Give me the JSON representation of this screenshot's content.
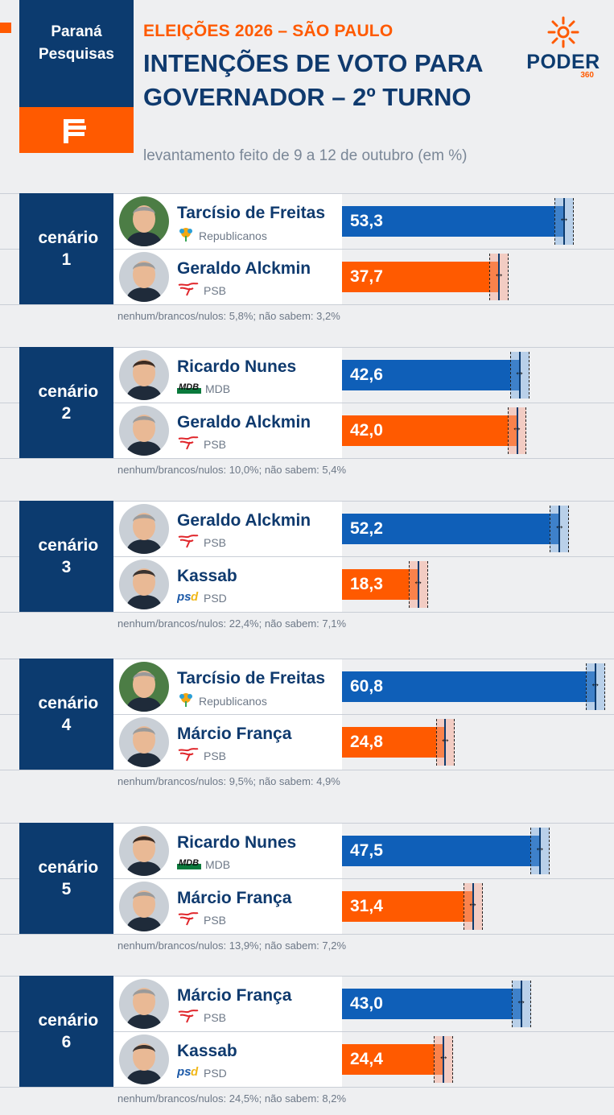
{
  "header": {
    "brand": "Paraná Pesquisas",
    "kicker": "ELEIÇÕES 2026 – SÃO PAULO",
    "title": "INTENÇÕES DE VOTO PARA GOVERNADOR – 2º TURNO",
    "subtitle": "levantamento feito de 9 a 12 de outubro (em %)",
    "publisher": "PODER",
    "publisher_sub": "360"
  },
  "colors": {
    "navy": "#0c3b6f",
    "orange": "#ff5a00",
    "blue_bar": "#0f5fb8",
    "orange_bar": "#ff5a00"
  },
  "icons": [
    "paranapesquisas-logo-icon",
    "poder360-sun-icon",
    "republicanos-icon",
    "psb-icon",
    "mdb-icon",
    "psd-icon"
  ],
  "chart_data": {
    "type": "bar",
    "orientation": "horizontal",
    "unit": "%",
    "margin_of_error_shown": true,
    "scenarios": [
      {
        "label": "cenário 1",
        "candidates": [
          {
            "name": "Tarcísio de Freitas",
            "party": "Republicanos",
            "value": 53.3,
            "display": "53,3"
          },
          {
            "name": "Geraldo Alckmin",
            "party": "PSB",
            "value": 37.7,
            "display": "37,7"
          }
        ],
        "note": "nenhum/brancos/nulos: 5,8%; não sabem: 3,2%"
      },
      {
        "label": "cenário 2",
        "candidates": [
          {
            "name": "Ricardo Nunes",
            "party": "MDB",
            "value": 42.6,
            "display": "42,6"
          },
          {
            "name": "Geraldo Alckmin",
            "party": "PSB",
            "value": 42.0,
            "display": "42,0"
          }
        ],
        "note": "nenhum/brancos/nulos: 10,0%; não sabem: 5,4%"
      },
      {
        "label": "cenário 3",
        "candidates": [
          {
            "name": "Geraldo Alckmin",
            "party": "PSB",
            "value": 52.2,
            "display": "52,2"
          },
          {
            "name": "Kassab",
            "party": "PSD",
            "value": 18.3,
            "display": "18,3"
          }
        ],
        "note": "nenhum/brancos/nulos: 22,4%; não sabem: 7,1%"
      },
      {
        "label": "cenário 4",
        "candidates": [
          {
            "name": "Tarcísio de Freitas",
            "party": "Republicanos",
            "value": 60.8,
            "display": "60,8"
          },
          {
            "name": "Márcio França",
            "party": "PSB",
            "value": 24.8,
            "display": "24,8"
          }
        ],
        "note": "nenhum/brancos/nulos: 9,5%; não sabem: 4,9%"
      },
      {
        "label": "cenário 5",
        "candidates": [
          {
            "name": "Ricardo Nunes",
            "party": "MDB",
            "value": 47.5,
            "display": "47,5"
          },
          {
            "name": "Márcio França",
            "party": "PSB",
            "value": 31.4,
            "display": "31,4"
          }
        ],
        "note": "nenhum/brancos/nulos: 13,9%; não sabem: 7,2%"
      },
      {
        "label": "cenário 6",
        "candidates": [
          {
            "name": "Márcio França",
            "party": "PSB",
            "value": 43.0,
            "display": "43,0"
          },
          {
            "name": "Kassab",
            "party": "PSD",
            "value": 24.4,
            "display": "24,4"
          }
        ],
        "note": "nenhum/brancos/nulos: 24,5%; não sabem: 8,2%"
      }
    ]
  }
}
